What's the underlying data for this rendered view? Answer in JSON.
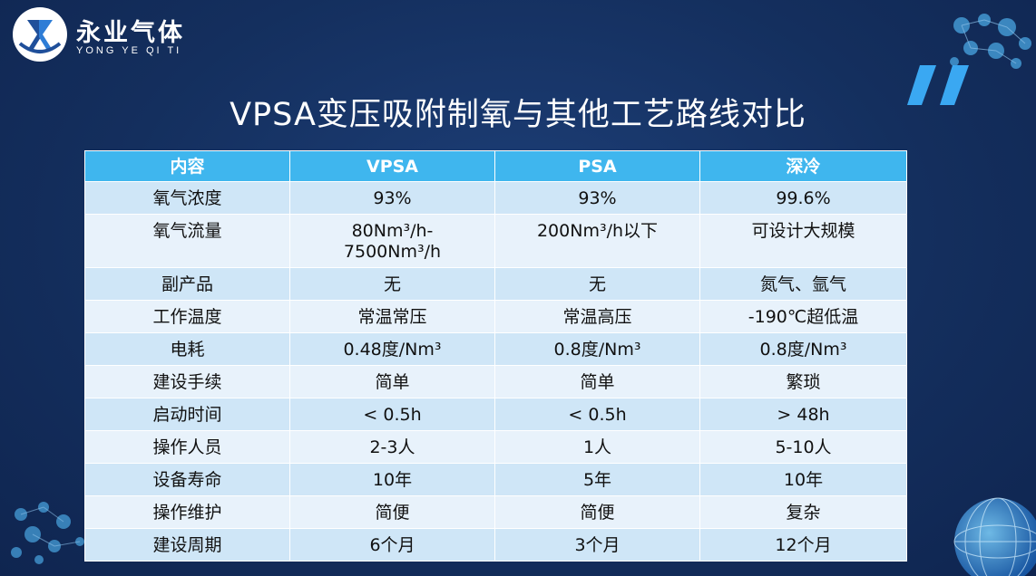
{
  "brand": {
    "name_cn": "永业气体",
    "name_en": "YONG YE QI TI"
  },
  "title": "VPSA变压吸附制氧与其他工艺路线对比",
  "table": {
    "headers": [
      "内容",
      "VPSA",
      "PSA",
      "深冷"
    ],
    "rows": [
      [
        "氧气浓度",
        "93%",
        "93%",
        "99.6%"
      ],
      [
        "氧气流量",
        "80Nm³/h-7500Nm³/h",
        "200Nm³/h以下",
        "可设计大规模"
      ],
      [
        "副产品",
        "无",
        "无",
        "氮气、氩气"
      ],
      [
        "工作温度",
        "常温常压",
        "常温高压",
        "-190℃超低温"
      ],
      [
        "电耗",
        "0.48度/Nm³",
        "0.8度/Nm³",
        "0.8度/Nm³"
      ],
      [
        "建设手续",
        "简单",
        "简单",
        "繁琐"
      ],
      [
        "启动时间",
        "< 0.5h",
        "< 0.5h",
        "> 48h"
      ],
      [
        "操作人员",
        "2-3人",
        "1人",
        "5-10人"
      ],
      [
        "设备寿命",
        "10年",
        "5年",
        "10年"
      ],
      [
        "操作维护",
        "简便",
        "简便",
        "复杂"
      ],
      [
        "建设周期",
        "6个月",
        "3个月",
        "12个月"
      ]
    ]
  },
  "colors": {
    "header_bg": "#3fb6ee",
    "row_odd": "#cfe6f7",
    "row_even": "#e8f2fb",
    "background": "#142f5e",
    "accent": "#39a9f0"
  }
}
